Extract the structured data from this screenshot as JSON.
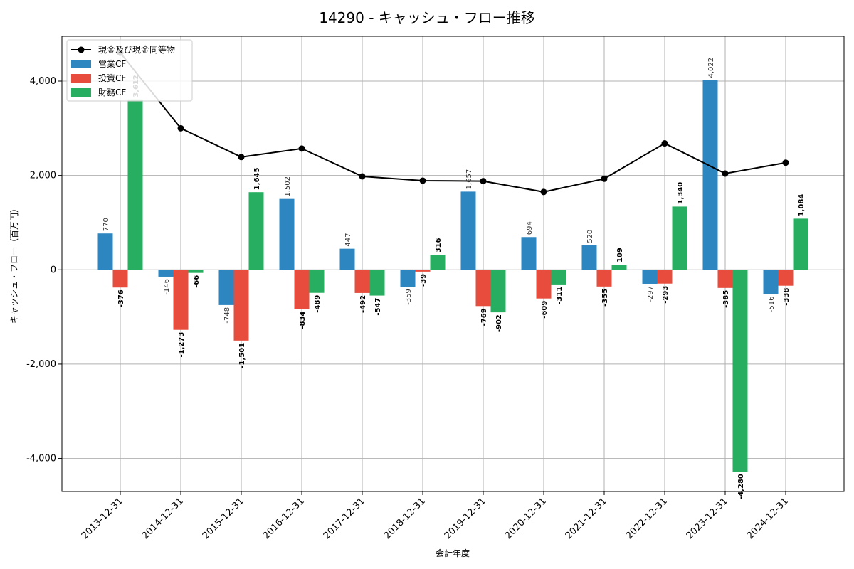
{
  "chart_data": {
    "type": "bar",
    "title": "14290 - キャッシュ・フロー推移",
    "xlabel": "会計年度",
    "ylabel": "キャッシュ・フロー（百万円）",
    "ylim": [
      -4700,
      4950
    ],
    "yticks": [
      -4000,
      -2000,
      0,
      2000,
      4000
    ],
    "ytick_labels": [
      "-4,000",
      "-2,000",
      "0",
      "2,000",
      "4,000"
    ],
    "grid": true,
    "legend_position": "top-left",
    "categories": [
      "2013-12-31",
      "2014-12-31",
      "2015-12-31",
      "2016-12-31",
      "2017-12-31",
      "2018-12-31",
      "2019-12-31",
      "2020-12-31",
      "2021-12-31",
      "2022-12-31",
      "2023-12-31",
      "2024-12-31"
    ],
    "series": [
      {
        "name": "営業CF",
        "type": "bar",
        "color": "#2e86c1",
        "values": [
          770,
          -146,
          -748,
          1502,
          447,
          -359,
          1657,
          694,
          520,
          -297,
          4022,
          -516
        ],
        "labels": [
          "770",
          "-146",
          "-748",
          "1,502",
          "447",
          "-359",
          "1,657",
          "694",
          "520",
          "-297",
          "4,022",
          "-516"
        ]
      },
      {
        "name": "投資CF",
        "type": "bar",
        "color": "#e74c3c",
        "values": [
          -376,
          -1273,
          -1501,
          -834,
          -492,
          -39,
          -769,
          -609,
          -355,
          -293,
          -385,
          -338
        ],
        "labels": [
          "-376",
          "-1,273",
          "-1,501",
          "-834",
          "-492",
          "-39",
          "-769",
          "-609",
          "-355",
          "-293",
          "-385",
          "-338"
        ]
      },
      {
        "name": "財務CF",
        "type": "bar",
        "color": "#27ae60",
        "values": [
          3612,
          -66,
          1645,
          -489,
          -547,
          316,
          -902,
          -311,
          109,
          1340,
          -4280,
          1084
        ],
        "labels": [
          "3,612",
          "-66",
          "1,645",
          "-489",
          "-547",
          "316",
          "-902",
          "-311",
          "109",
          "1,340",
          "-4,280",
          "1,084"
        ]
      },
      {
        "name": "現金及び現金同等物",
        "type": "line",
        "color": "#000000",
        "values": [
          4600,
          3000,
          2390,
          2570,
          1980,
          1890,
          1880,
          1650,
          1930,
          2680,
          2040,
          2270
        ]
      }
    ]
  }
}
